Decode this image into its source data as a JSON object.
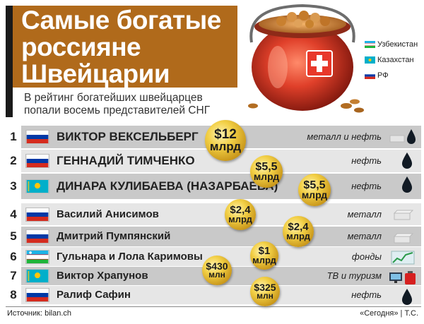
{
  "header": {
    "title": "Самые богатые россияне Швейцарии",
    "subtitle": "В рейтинг богатейших швейцарцев попали восемь представителей СНГ"
  },
  "legend": [
    {
      "label": "Узбекистан",
      "flag": "uz"
    },
    {
      "label": "Казахстан",
      "flag": "kz"
    },
    {
      "label": "РФ",
      "flag": "ru"
    }
  ],
  "rows": [
    {
      "rank": "1",
      "name": "ВИКТОР ВЕКСЕЛЬБЕРГ",
      "flag": "ru",
      "industry": "металл и нефть",
      "icon": "metal-and-oil-icon",
      "wealth_amount": "$12",
      "wealth_unit": "млрд"
    },
    {
      "rank": "2",
      "name": "ГЕННАДИЙ ТИМЧЕНКО",
      "flag": "ru",
      "industry": "нефть",
      "icon": "oil-drop-icon",
      "wealth_amount": "$5,5",
      "wealth_unit": "млрд"
    },
    {
      "rank": "3",
      "name": "ДИНАРА КУЛИБАЕВА (НАЗАРБАЕВА)",
      "flag": "kz",
      "industry": "нефть",
      "icon": "oil-drop-icon",
      "wealth_amount": "$5,5",
      "wealth_unit": "млрд"
    },
    {
      "rank": "4",
      "name": "Василий Анисимов",
      "flag": "ru",
      "industry": "металл",
      "icon": "metal-bar-icon",
      "wealth_amount": "$2,4",
      "wealth_unit": "млрд"
    },
    {
      "rank": "5",
      "name": "Дмитрий Пумпянский",
      "flag": "ru",
      "industry": "металл",
      "icon": "metal-bar-icon",
      "wealth_amount": "$2,4",
      "wealth_unit": "млрд"
    },
    {
      "rank": "6",
      "name": "Гульнара и Лола Каримовы",
      "flag": "uz",
      "industry": "фонды",
      "icon": "stock-chart-icon",
      "wealth_amount": "$1",
      "wealth_unit": "млрд"
    },
    {
      "rank": "7",
      "name": "Виктор Храпунов",
      "flag": "kz",
      "industry": "ТВ и туризм",
      "icon": "tv-and-suitcase-icon",
      "wealth_amount": "$430",
      "wealth_unit": "млн"
    },
    {
      "rank": "8",
      "name": "Ралиф Сафин",
      "flag": "ru",
      "industry": "нефть",
      "icon": "oil-drop-icon",
      "wealth_amount": "$325",
      "wealth_unit": "млн"
    }
  ],
  "footer": {
    "source": "Источник:  bilan.ch",
    "credit": "«Сегодня» | Т.С."
  },
  "colors": {
    "header_bg": "#b06a1b",
    "stripe_dark": "#c9c9c9",
    "stripe_light": "#e6e6e6",
    "coin_gold": "#e9bf34"
  }
}
